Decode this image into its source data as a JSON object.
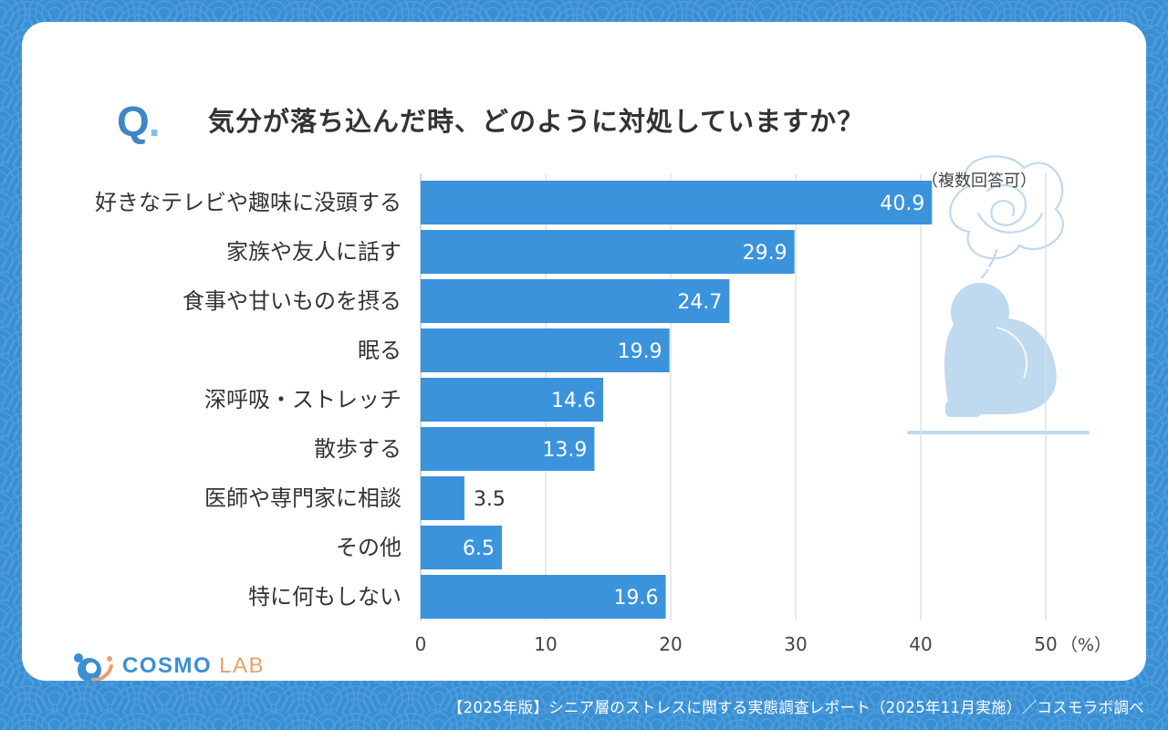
{
  "question": {
    "mark": "Q",
    "mark_dot": ".",
    "text": "気分が落ち込んだ時、どのように対処していますか？"
  },
  "note": "（複数回答可）",
  "footer": "【2025年版】シニア層のストレスに関する実態調査レポート（2025年11月実施）／コスモラボ調べ",
  "logo": {
    "main": "COSMO",
    "sub": "LAB"
  },
  "colors": {
    "bar": "#3b93dc",
    "background": "#3a8fd3",
    "card": "#ffffff",
    "grid": "#d9dde2",
    "illustration": "#bfd9ee"
  },
  "chart_data": {
    "type": "bar",
    "orientation": "horizontal",
    "title": "気分が落ち込んだ時、どのように対処していますか？",
    "categories": [
      "好きなテレビや趣味に没頭する",
      "家族や友人に話す",
      "食事や甘いものを摂る",
      "眠る",
      "深呼吸・ストレッチ",
      "散歩する",
      "医師や専門家に相談",
      "その他",
      "特に何もしない"
    ],
    "values": [
      40.9,
      29.9,
      24.7,
      19.9,
      14.6,
      13.9,
      3.5,
      6.5,
      19.6
    ],
    "value_labels": [
      "40.9",
      "29.9",
      "24.7",
      "19.9",
      "14.6",
      "13.9",
      "3.5",
      "6.5",
      "19.6"
    ],
    "xlim": [
      0,
      50
    ],
    "xticks": [
      0,
      10,
      20,
      30,
      40,
      50
    ],
    "xtick_labels": [
      "0",
      "10",
      "20",
      "30",
      "40",
      "50"
    ],
    "xunit": "（%）",
    "grid": true
  }
}
